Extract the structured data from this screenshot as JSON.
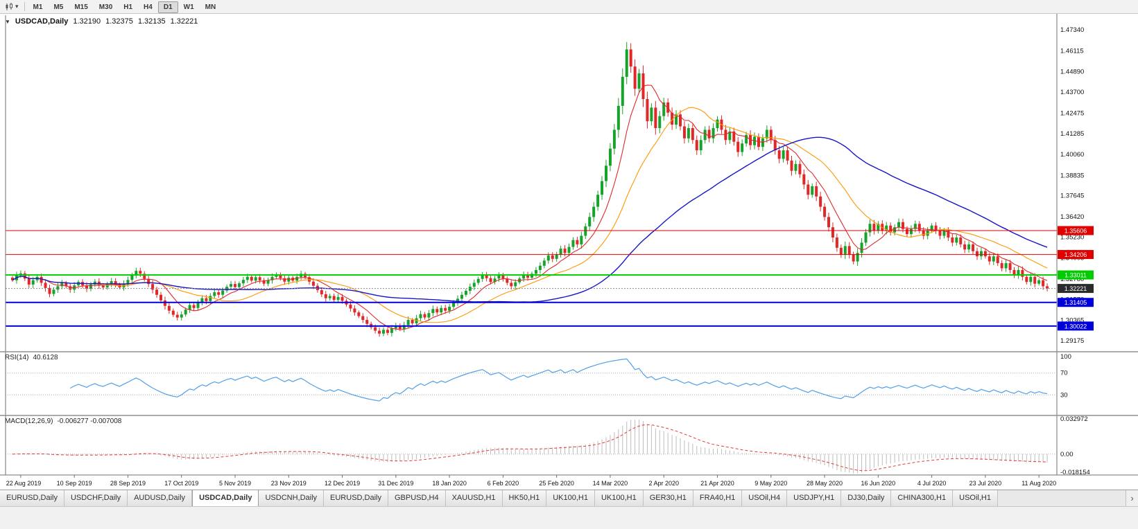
{
  "toolbar": {
    "timeframes": [
      "M1",
      "M5",
      "M15",
      "M30",
      "H1",
      "H4",
      "D1",
      "W1",
      "MN"
    ],
    "active_timeframe": "D1"
  },
  "icons": {
    "chart_dropdown": "▼",
    "toolbar_caret": "▾",
    "tab_scroll_right": "›"
  },
  "chart": {
    "symbol_label": "USDCAD,Daily",
    "ohlc": {
      "open": "1.32190",
      "high": "1.32375",
      "low": "1.32135",
      "close": "1.32221"
    },
    "price_axis": {
      "max": 1.482,
      "min": 1.286,
      "ticks": [
        "1.47340",
        "1.46115",
        "1.44890",
        "1.43700",
        "1.42475",
        "1.41285",
        "1.40060",
        "1.38835",
        "1.37645",
        "1.36420",
        "1.35230",
        "1.34005",
        "1.32780",
        "1.31570",
        "1.30365",
        "1.29175"
      ]
    },
    "levels": [
      {
        "label": "1.35606",
        "price": 1.35606,
        "color": "#e00000",
        "width": 1
      },
      {
        "label": "1.34206",
        "price": 1.34206,
        "color": "#e00000",
        "width": 1
      },
      {
        "label": "1.33011",
        "price": 1.33011,
        "color": "#00cc00",
        "width": 2
      },
      {
        "label": "1.31405",
        "price": 1.31405,
        "color": "#0000dd",
        "width": 2
      },
      {
        "label": "1.30022",
        "price": 1.30022,
        "color": "#0000dd",
        "width": 2
      }
    ],
    "current_price": {
      "value": 1.32221,
      "label": "1.32221",
      "color": "#2b2b2b"
    }
  },
  "rsi": {
    "name": "RSI(14)",
    "value": "40.6128",
    "axis_labels": [
      "100",
      "70",
      "30"
    ],
    "levels": [
      70,
      30
    ],
    "line_color": "#4f9fe8"
  },
  "macd": {
    "name": "MACD(12,26,9)",
    "values": "-0.006277 -0.007008",
    "axis_labels": [
      "0.032972",
      "0.00",
      "-0.018154"
    ],
    "range": [
      -0.018154,
      0.032972
    ],
    "hist_color": "#bdbdbd",
    "signal_color": "#e53935"
  },
  "chart_data": {
    "type": "candlestick",
    "symbol": "USDCAD",
    "timeframe": "Daily",
    "ma_periods": {
      "fast": 8,
      "mid": 20,
      "slow": 55
    },
    "colors": {
      "up": "#17a22b",
      "down": "#e02828",
      "ma_fast": "#e02828",
      "ma_mid": "#ff9800",
      "ma_slow": "#1515c8"
    },
    "date_labels": [
      "22 Aug 2019",
      "10 Sep 2019",
      "28 Sep 2019",
      "17 Oct 2019",
      "5 Nov 2019",
      "23 Nov 2019",
      "12 Dec 2019",
      "31 Dec 2019",
      "18 Jan 2020",
      "6 Feb 2020",
      "25 Feb 2020",
      "14 Mar 2020",
      "2 Apr 2020",
      "21 Apr 2020",
      "9 May 2020",
      "28 May 2020",
      "16 Jun 2020",
      "4 Jul 2020",
      "23 Jul 2020",
      "11 Aug 2020"
    ],
    "label_indices": [
      2,
      15,
      28,
      41,
      54,
      67,
      80,
      93,
      106,
      119,
      132,
      145,
      158,
      171,
      184,
      197,
      210,
      223,
      236,
      249
    ],
    "closes": [
      1.327,
      1.33,
      1.331,
      1.328,
      1.3245,
      1.327,
      1.329,
      1.3255,
      1.3225,
      1.319,
      1.3215,
      1.3235,
      1.3255,
      1.3235,
      1.3215,
      1.324,
      1.326,
      1.324,
      1.322,
      1.3245,
      1.3262,
      1.324,
      1.3228,
      1.3248,
      1.3265,
      1.3245,
      1.3228,
      1.325,
      1.3272,
      1.33,
      1.3325,
      1.3308,
      1.3278,
      1.3248,
      1.3215,
      1.3185,
      1.3152,
      1.312,
      1.3092,
      1.3068,
      1.3052,
      1.307,
      1.3098,
      1.3125,
      1.3108,
      1.314,
      1.3165,
      1.3148,
      1.3178,
      1.32,
      1.3185,
      1.321,
      1.3232,
      1.3248,
      1.323,
      1.3252,
      1.3272,
      1.329,
      1.3268,
      1.3288,
      1.327,
      1.325,
      1.327,
      1.329,
      1.3302,
      1.3282,
      1.3262,
      1.3285,
      1.3268,
      1.329,
      1.3308,
      1.3288,
      1.3262,
      1.3238,
      1.3212,
      1.3188,
      1.3165,
      1.3178,
      1.3155,
      1.3172,
      1.315,
      1.3128,
      1.3105,
      1.3082,
      1.306,
      1.3038,
      1.3015,
      1.2995,
      1.2975,
      1.2958,
      1.298,
      1.2962,
      1.2988,
      1.3005,
      1.2985,
      1.3008,
      1.3038,
      1.3018,
      1.3048,
      1.3072,
      1.3052,
      1.3078,
      1.3102,
      1.3082,
      1.3108,
      1.3092,
      1.3115,
      1.314,
      1.3162,
      1.3185,
      1.3208,
      1.3232,
      1.3255,
      1.3278,
      1.33,
      1.3282,
      1.326,
      1.328,
      1.3298,
      1.3278,
      1.3255,
      1.3235,
      1.3258,
      1.328,
      1.3302,
      1.3285,
      1.3308,
      1.333,
      1.3355,
      1.3385,
      1.3415,
      1.3395,
      1.342,
      1.3455,
      1.343,
      1.3465,
      1.3505,
      1.348,
      1.353,
      1.3585,
      1.364,
      1.37,
      1.377,
      1.385,
      1.394,
      1.404,
      1.415,
      1.429,
      1.446,
      1.462,
      1.452,
      1.439,
      1.448,
      1.433,
      1.42,
      1.428,
      1.416,
      1.423,
      1.431,
      1.425,
      1.418,
      1.424,
      1.417,
      1.41,
      1.416,
      1.409,
      1.403,
      1.409,
      1.415,
      1.41,
      1.416,
      1.421,
      1.415,
      1.409,
      1.414,
      1.408,
      1.402,
      1.407,
      1.412,
      1.406,
      1.411,
      1.405,
      1.41,
      1.415,
      1.409,
      1.403,
      1.398,
      1.403,
      1.397,
      1.391,
      1.395,
      1.389,
      1.383,
      1.377,
      1.382,
      1.376,
      1.37,
      1.364,
      1.358,
      1.352,
      1.346,
      1.342,
      1.347,
      1.342,
      1.338,
      1.343,
      1.349,
      1.355,
      1.36,
      1.356,
      1.36,
      1.356,
      1.359,
      1.355,
      1.358,
      1.361,
      1.357,
      1.354,
      1.357,
      1.36,
      1.356,
      1.353,
      1.356,
      1.359,
      1.356,
      1.353,
      1.356,
      1.352,
      1.349,
      1.352,
      1.348,
      1.345,
      1.348,
      1.344,
      1.341,
      1.344,
      1.341,
      1.338,
      1.341,
      1.337,
      1.334,
      1.337,
      1.333,
      1.33,
      1.333,
      1.329,
      1.326,
      1.329,
      1.325,
      1.327,
      1.3235,
      1.3222
    ]
  },
  "tabs": {
    "items": [
      "EURUSD,Daily",
      "USDCHF,Daily",
      "AUDUSD,Daily",
      "USDCAD,Daily",
      "USDCNH,Daily",
      "EURUSD,Daily",
      "GBPUSD,H4",
      "XAUUSD,H1",
      "HK50,H1",
      "UK100,H1",
      "UK100,H1",
      "GER30,H1",
      "FRA40,H1",
      "USOil,H4",
      "USDJPY,H1",
      "DJ30,Daily",
      "CHINA300,H1",
      "USOil,H1"
    ],
    "active_index": 3
  }
}
